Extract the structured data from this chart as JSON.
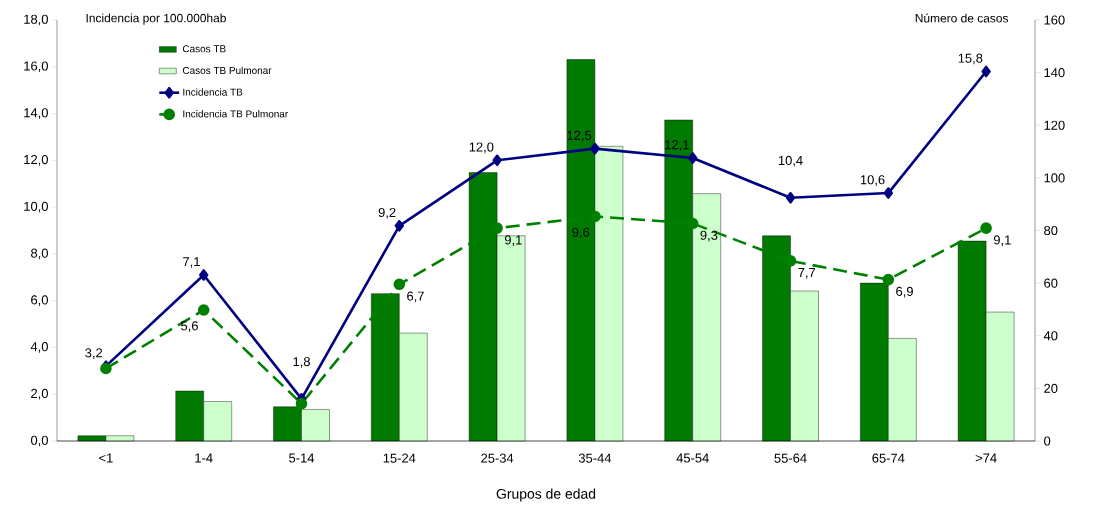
{
  "chart_data": {
    "type": "bar",
    "xlabel": "Grupos de edad",
    "ylabel": "Incidencia por 100.000hab",
    "y2label": "Número de casos",
    "categories": [
      "<1",
      "1-4",
      "5-14",
      "15-24",
      "25-34",
      "35-44",
      "45-54",
      "55-64",
      "65-74",
      ">74"
    ],
    "series": [
      {
        "name": "Casos TB",
        "axis": "y2",
        "color": "#007a00",
        "values": [
          2,
          19,
          13,
          56,
          102,
          145,
          122,
          78,
          60,
          76
        ]
      },
      {
        "name": "Casos TB Pulmonar",
        "axis": "y2",
        "color": "#ccffcc",
        "values": [
          2,
          15,
          12,
          41,
          78,
          112,
          94,
          57,
          39,
          49
        ]
      },
      {
        "name": "Incidencia TB",
        "type": "line",
        "color": "#000080",
        "marker": "diamond",
        "line_style": "solid",
        "values": [
          3.2,
          7.1,
          1.8,
          9.2,
          12.0,
          12.5,
          12.1,
          10.4,
          10.6,
          15.8
        ],
        "value_labels": [
          "3,2",
          "7,1",
          "1,8",
          "9,2",
          "12,0",
          "12,5",
          "12,1",
          "10,4",
          "10,6",
          "15,8"
        ]
      },
      {
        "name": "Incidencia TB Pulmonar",
        "type": "line",
        "color": "#008000",
        "marker": "circle",
        "line_style": "dashed",
        "values": [
          3.1,
          5.6,
          1.6,
          6.7,
          9.1,
          9.6,
          9.3,
          7.7,
          6.9,
          9.1
        ],
        "value_labels": [
          null,
          "5,6",
          null,
          "6,7",
          "9,1",
          "9,6",
          "9,3",
          "7,7",
          "6,9",
          "9,1"
        ]
      }
    ],
    "ylim": [
      0,
      18
    ],
    "yticks": [
      {
        "value": 0,
        "label": "0,0"
      },
      {
        "value": 2,
        "label": "2,0"
      },
      {
        "value": 4,
        "label": "4,0"
      },
      {
        "value": 6,
        "label": "6,0"
      },
      {
        "value": 8,
        "label": "8,0"
      },
      {
        "value": 10,
        "label": "10,0"
      },
      {
        "value": 12,
        "label": "12,0"
      },
      {
        "value": 14,
        "label": "14,0"
      },
      {
        "value": 16,
        "label": "16,0"
      },
      {
        "value": 18,
        "label": "18,0"
      }
    ],
    "y2lim": [
      0,
      160
    ],
    "y2ticks": [
      0,
      20,
      40,
      60,
      80,
      100,
      120,
      140,
      160
    ],
    "legend": "top left",
    "grid": false
  }
}
